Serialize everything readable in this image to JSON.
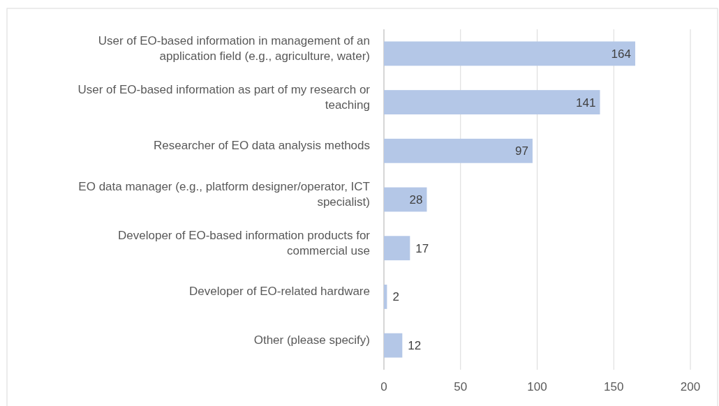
{
  "chart_data": {
    "type": "bar",
    "orientation": "horizontal",
    "categories": [
      "User of EO-based information in management of an application field (e.g., agriculture, water)",
      "User of EO-based information as part of my research or teaching",
      "Researcher of EO data analysis methods",
      "EO data manager (e.g., platform designer/operator, ICT specialist)",
      "Developer of EO-based information products for commercial use",
      "Developer of EO-related hardware",
      "Other (please specify)"
    ],
    "values": [
      164,
      141,
      97,
      28,
      17,
      2,
      12
    ],
    "color": "#b4c7e7",
    "xlim": [
      0,
      200
    ],
    "xticks": [
      0,
      50,
      100,
      150,
      200
    ],
    "grid": "x",
    "data_labels": true
  }
}
